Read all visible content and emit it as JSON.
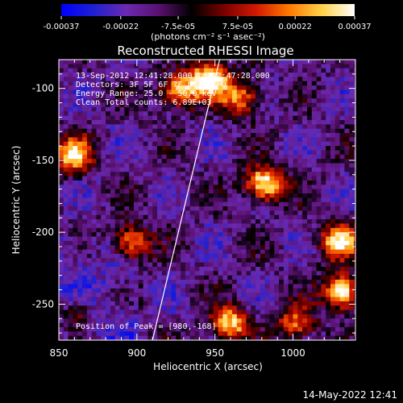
{
  "colorbar": {
    "ticks": [
      "-0.00037",
      "-0.00022",
      "-7.5e-05",
      "7.5e-05",
      "0.00022",
      "0.00037"
    ],
    "tick_values": [
      -0.00037,
      -0.00022,
      -7.5e-05,
      7.5e-05,
      0.00022,
      0.00037
    ],
    "range": [
      -0.00037,
      0.00037
    ],
    "units": "(photons cm⁻² s⁻¹ asec⁻²)",
    "colormap": [
      "#0000ff",
      "#2020d0",
      "#6a2ab0",
      "#5a1070",
      "#000000",
      "#7a0000",
      "#d21a00",
      "#ff7a00",
      "#ffd24a",
      "#ffffff"
    ]
  },
  "chart_data": {
    "type": "heatmap",
    "title": "Reconstructed RHESSI Image",
    "xlabel": "Heliocentric X (arcsec)",
    "ylabel": "Heliocentric Y (arcsec)",
    "xlim": [
      850,
      1040
    ],
    "ylim": [
      -275,
      -80
    ],
    "xticks": [
      850,
      900,
      950,
      1000
    ],
    "yticks": [
      -100,
      -150,
      -200,
      -250
    ],
    "peak": {
      "x": 980,
      "y": -168
    },
    "limb_line": {
      "x": [
        910,
        953
      ],
      "y": [
        -275,
        -80
      ],
      "color": "#ffffff"
    },
    "sources": [
      {
        "x": 945,
        "y": -92,
        "amplitude": 1.0
      },
      {
        "x": 925,
        "y": -100,
        "amplitude": 0.8
      },
      {
        "x": 965,
        "y": -105,
        "amplitude": 0.7
      },
      {
        "x": 858,
        "y": -145,
        "amplitude": 0.85
      },
      {
        "x": 980,
        "y": -165,
        "amplitude": 1.0
      },
      {
        "x": 895,
        "y": -205,
        "amplitude": 0.7
      },
      {
        "x": 1028,
        "y": -205,
        "amplitude": 0.85
      },
      {
        "x": 1030,
        "y": -240,
        "amplitude": 1.0
      },
      {
        "x": 958,
        "y": -262,
        "amplitude": 0.85
      },
      {
        "x": 1000,
        "y": -262,
        "amplitude": 0.6
      },
      {
        "x": 860,
        "y": -255,
        "amplitude": 0.3
      }
    ],
    "annotations": [
      "13-Sep-2012 12:41:28.000 to 12:47:28.000",
      "Detectors: 3F 5F 6F 7F 8F  Att 0",
      "Energy Range: 25.0 - 50.0 keV",
      "Clean     Total counts: 6.89E+03",
      "Position of Peak = [980,-168]"
    ]
  },
  "footer": {
    "timestamp": "14-May-2022 12:41"
  }
}
